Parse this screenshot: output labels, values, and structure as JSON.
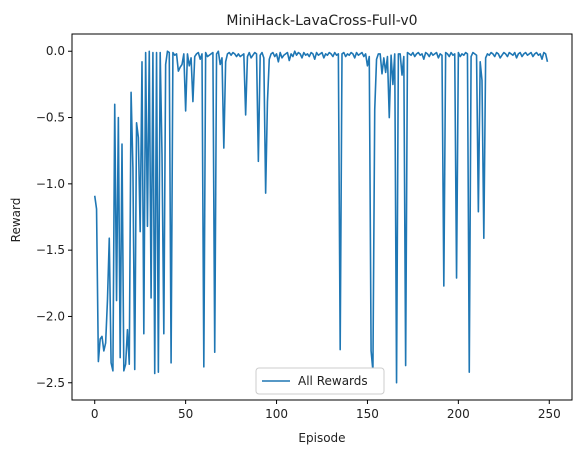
{
  "chart_data": {
    "type": "line",
    "title": "MiniHack-LavaCross-Full-v0",
    "xlabel": "Episode",
    "ylabel": "Reward",
    "xlim": [
      -12.5,
      262.5
    ],
    "ylim": [
      -2.63,
      0.13
    ],
    "xticks": [
      0,
      50,
      100,
      150,
      200,
      250
    ],
    "yticks": [
      -2.5,
      -2.0,
      -1.5,
      -1.0,
      -0.5,
      0.0
    ],
    "xtick_labels": [
      "0",
      "50",
      "100",
      "150",
      "200",
      "250"
    ],
    "ytick_labels": [
      "−2.5",
      "−2.0",
      "−1.5",
      "−1.0",
      "−0.5",
      "0.0"
    ],
    "grid": false,
    "legend_position": "lower-center",
    "series": [
      {
        "name": "All Rewards",
        "color": "#1f77b4",
        "values": [
          -1.09,
          -1.19,
          -2.34,
          -2.17,
          -2.15,
          -2.26,
          -2.2,
          -1.88,
          -1.41,
          -2.35,
          -2.41,
          -0.4,
          -1.88,
          -0.5,
          -2.31,
          -0.7,
          -2.41,
          -2.36,
          -2.1,
          -2.36,
          -0.31,
          -0.88,
          -2.4,
          -0.54,
          -0.65,
          -1.36,
          -0.08,
          -2.13,
          -0.01,
          -1.32,
          0.0,
          -1.86,
          -0.01,
          -2.43,
          -0.01,
          -2.42,
          -0.01,
          -0.78,
          -2.13,
          -0.1,
          0.0,
          -0.01,
          -2.35,
          -0.01,
          -0.03,
          -0.02,
          -0.15,
          -0.12,
          -0.1,
          -0.02,
          -0.45,
          -0.02,
          -0.11,
          -0.05,
          -0.38,
          -0.04,
          -0.02,
          -0.01,
          -0.06,
          -0.02,
          -2.38,
          -0.01,
          -0.04,
          -0.03,
          -0.02,
          -0.01,
          -2.27,
          -0.02,
          0.0,
          -0.1,
          -0.05,
          -0.73,
          -0.08,
          -0.02,
          -0.01,
          -0.03,
          -0.01,
          -0.02,
          -0.04,
          -0.02,
          -0.04,
          -0.03,
          -0.02,
          -0.48,
          -0.04,
          -0.01,
          -0.05,
          -0.03,
          -0.01,
          -0.02,
          -0.83,
          -0.03,
          -0.01,
          -0.05,
          -1.07,
          -0.38,
          -0.06,
          -0.02,
          -0.01,
          -0.04,
          -0.02,
          -0.08,
          -0.01,
          -0.05,
          -0.03,
          -0.02,
          -0.01,
          -0.07,
          -0.02,
          -0.04,
          0.0,
          -0.03,
          -0.01,
          -0.02,
          -0.05,
          -0.01,
          -0.03,
          -0.02,
          -0.04,
          -0.01,
          -0.02,
          -0.06,
          -0.01,
          -0.03,
          -0.02,
          -0.01,
          -0.05,
          -0.02,
          -0.03,
          -0.01,
          -0.02,
          -0.04,
          -0.01,
          -0.03,
          -0.02,
          -2.25,
          -0.02,
          -0.01,
          -0.04,
          -0.02,
          -0.03,
          -0.01,
          -0.02,
          -0.05,
          -0.01,
          -0.03,
          -0.02,
          -0.01,
          -0.04,
          -0.02,
          -0.11,
          -0.04,
          -2.26,
          -2.41,
          -0.44,
          -0.06,
          -0.02,
          -0.02,
          -0.17,
          -0.05,
          -0.16,
          -0.04,
          -0.5,
          -0.03,
          -0.25,
          -0.02,
          -2.5,
          -0.02,
          -0.02,
          -0.18,
          -0.04,
          -2.37,
          -0.01,
          -0.02,
          -0.03,
          -0.01,
          -0.04,
          -0.02,
          -0.01,
          -0.03,
          -0.02,
          -0.06,
          -0.01,
          -0.02,
          -0.04,
          -0.01,
          -0.03,
          -0.02,
          -0.01,
          -0.05,
          -0.02,
          -0.03,
          -1.77,
          -0.01,
          -0.02,
          -0.04,
          -0.01,
          -0.03,
          -0.02,
          -1.71,
          -0.01,
          -0.04,
          -0.02,
          -0.03,
          -0.01,
          -0.02,
          -2.42,
          -0.04,
          -0.01,
          -0.02,
          -0.03,
          -1.21,
          -0.08,
          -0.22,
          -1.41,
          -0.05,
          -0.02,
          -0.03,
          -0.01,
          -0.02,
          -0.04,
          -0.01,
          -0.02,
          -0.05,
          -0.03,
          -0.01,
          -0.02,
          -0.04,
          -0.01,
          -0.02,
          -0.03,
          -0.01,
          -0.05,
          -0.02,
          -0.01,
          -0.04,
          -0.02,
          -0.01,
          -0.03,
          -0.02,
          -0.01,
          -0.04,
          -0.02,
          -0.01,
          -0.03,
          -0.02,
          -0.06,
          -0.01,
          -0.02,
          -0.08
        ]
      }
    ]
  }
}
